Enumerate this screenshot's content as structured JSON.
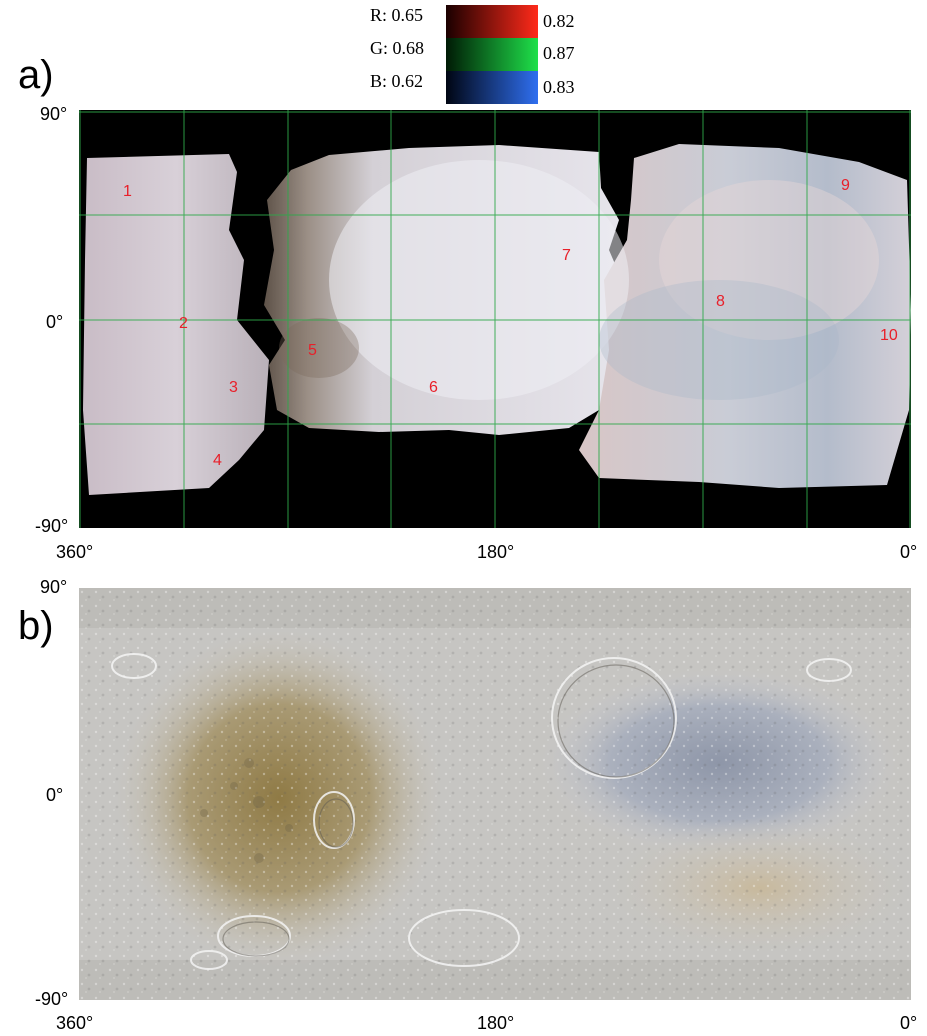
{
  "legend": {
    "r_min": "R: 0.65",
    "r_max": "0.82",
    "r_color": "#ff2a1a",
    "g_min": "G: 0.68",
    "g_max": "0.87",
    "g_color": "#1fe04a",
    "b_min": "B: 0.62",
    "b_max": "0.83",
    "b_color": "#2f6ff0"
  },
  "panel_a": {
    "letter": "a)",
    "lat_top": "90°",
    "lat_bottom": "-90°",
    "lon_left": "360°",
    "lon_mid": "180°",
    "lon_right": "0°",
    "grid_color": "#2fa84a",
    "regions": [
      "1",
      "2",
      "3",
      "4",
      "5",
      "6",
      "7",
      "8",
      "9",
      "10"
    ]
  },
  "panel_b": {
    "letter": "b)",
    "lat_top": "90°",
    "lat_zero": "0°",
    "lat_bottom": "-90°",
    "lon_left": "360°",
    "lon_mid": "180°",
    "lon_right": "0°"
  },
  "panel_a_lat_zero": "0°"
}
